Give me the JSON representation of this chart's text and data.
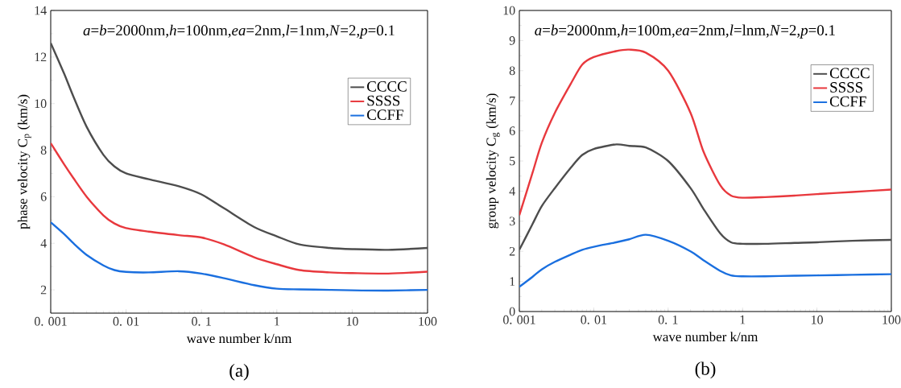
{
  "chart_data": [
    {
      "type": "line",
      "title": "(a)",
      "xlabel": "wave number k/nm",
      "ylabel": "phase velocity C$_{p}$ (km/s)",
      "annotations": [
        "*a*=*b*=2000nm,*h*=100nm,*ea*=2nm,*l*=1nm,*N*=2,*p*=0.1"
      ],
      "log": "x",
      "legend": "top right",
      "xlim": [
        0.001,
        100
      ],
      "ylim": [
        1,
        14
      ],
      "xticks": [
        {
          "value": 0.001,
          "label": "0. 001"
        },
        {
          "value": 0.01,
          "label": "0. 01"
        },
        {
          "value": 0.1,
          "label": "0. 1"
        },
        1,
        10,
        100
      ],
      "yticks": [
        2,
        4,
        6,
        8,
        10,
        12,
        14
      ],
      "x": [
        0.001,
        0.0015,
        0.002,
        0.003,
        0.005,
        0.007,
        0.01,
        0.02,
        0.05,
        0.1,
        0.2,
        0.5,
        1,
        2,
        5,
        10,
        30,
        100
      ],
      "series": [
        {
          "name": "CCCC",
          "color": "#4d4d4d",
          "values": [
            12.6,
            11.3,
            10.3,
            9.0,
            7.8,
            7.3,
            7.0,
            6.75,
            6.45,
            6.1,
            5.5,
            4.7,
            4.3,
            3.95,
            3.8,
            3.75,
            3.72,
            3.8
          ]
        },
        {
          "name": "SSSS",
          "color": "#e8383d",
          "values": [
            8.3,
            7.4,
            6.8,
            6.0,
            5.2,
            4.85,
            4.65,
            4.5,
            4.35,
            4.25,
            3.95,
            3.4,
            3.1,
            2.85,
            2.75,
            2.72,
            2.7,
            2.78
          ]
        },
        {
          "name": "CCFF",
          "color": "#1a6fdf",
          "values": [
            4.9,
            4.4,
            4.0,
            3.5,
            3.05,
            2.85,
            2.77,
            2.75,
            2.8,
            2.7,
            2.5,
            2.2,
            2.05,
            2.02,
            2.0,
            1.98,
            1.97,
            2.0
          ]
        }
      ]
    },
    {
      "type": "line",
      "title": "(b)",
      "xlabel": "wave number k/nm",
      "ylabel": "group velocity C$_{g}$ (km/s)",
      "annotations": [
        "*a*=*b*=2000nm,*h*=100m,*ea*=2nm,*l*=lnm,*N*=2,*p*=0.1"
      ],
      "log": "x",
      "legend": "top right",
      "xlim": [
        0.001,
        100
      ],
      "ylim": [
        0,
        10
      ],
      "xticks": [
        {
          "value": 0.001,
          "label": "0. 001"
        },
        {
          "value": 0.01,
          "label": "0. 01"
        },
        {
          "value": 0.1,
          "label": "0. 1"
        },
        1,
        10,
        100
      ],
      "yticks": [
        0,
        1,
        2,
        3,
        4,
        5,
        6,
        7,
        8,
        9,
        10
      ],
      "x": [
        0.001,
        0.0015,
        0.002,
        0.003,
        0.005,
        0.007,
        0.01,
        0.02,
        0.03,
        0.05,
        0.1,
        0.2,
        0.3,
        0.5,
        0.7,
        1,
        2,
        5,
        10,
        30,
        100
      ],
      "series": [
        {
          "name": "CCCC",
          "color": "#4d4d4d",
          "values": [
            2.05,
            2.9,
            3.5,
            4.1,
            4.8,
            5.2,
            5.4,
            5.55,
            5.5,
            5.45,
            5.0,
            4.1,
            3.4,
            2.6,
            2.3,
            2.25,
            2.25,
            2.28,
            2.3,
            2.35,
            2.38
          ]
        },
        {
          "name": "SSSS",
          "color": "#e8383d",
          "values": [
            3.2,
            4.6,
            5.6,
            6.6,
            7.6,
            8.2,
            8.45,
            8.65,
            8.7,
            8.6,
            8.0,
            6.6,
            5.3,
            4.2,
            3.85,
            3.78,
            3.8,
            3.85,
            3.9,
            3.97,
            4.05
          ]
        },
        {
          "name": "CCFF",
          "color": "#1a6fdf",
          "values": [
            0.82,
            1.15,
            1.4,
            1.65,
            1.9,
            2.05,
            2.15,
            2.3,
            2.4,
            2.55,
            2.35,
            2.0,
            1.7,
            1.35,
            1.2,
            1.17,
            1.17,
            1.19,
            1.2,
            1.22,
            1.24
          ]
        }
      ]
    }
  ]
}
